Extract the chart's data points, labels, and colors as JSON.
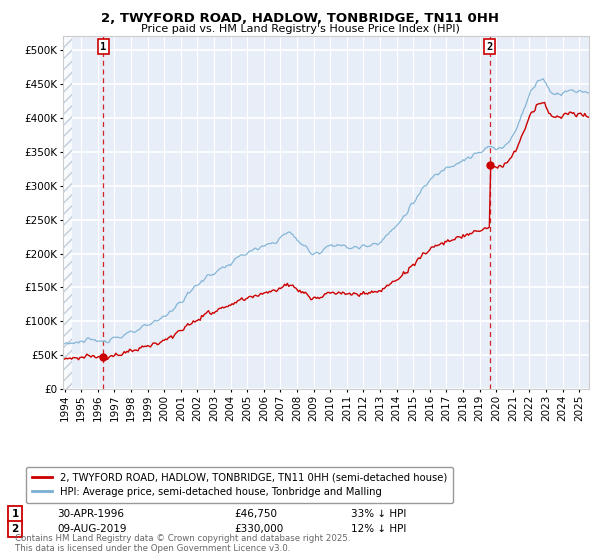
{
  "title": "2, TWYFORD ROAD, HADLOW, TONBRIDGE, TN11 0HH",
  "subtitle": "Price paid vs. HM Land Registry's House Price Index (HPI)",
  "sale1_label": "30-APR-1996",
  "sale1_price": 46750,
  "sale1_hpi_pct": "33% ↓ HPI",
  "sale2_label": "09-AUG-2019",
  "sale2_price": 330000,
  "sale2_hpi_pct": "12% ↓ HPI",
  "legend_line1": "2, TWYFORD ROAD, HADLOW, TONBRIDGE, TN11 0HH (semi-detached house)",
  "legend_line2": "HPI: Average price, semi-detached house, Tonbridge and Malling",
  "footnote": "Contains HM Land Registry data © Crown copyright and database right 2025.\nThis data is licensed under the Open Government Licence v3.0.",
  "sale_color": "#cc0000",
  "hpi_color": "#7ab0d4",
  "background_color": "#e8eef8",
  "ylim": [
    0,
    520000
  ],
  "yticks": [
    0,
    50000,
    100000,
    150000,
    200000,
    250000,
    300000,
    350000,
    400000,
    450000,
    500000
  ],
  "xstart_year": 1994,
  "xend_year": 2025
}
